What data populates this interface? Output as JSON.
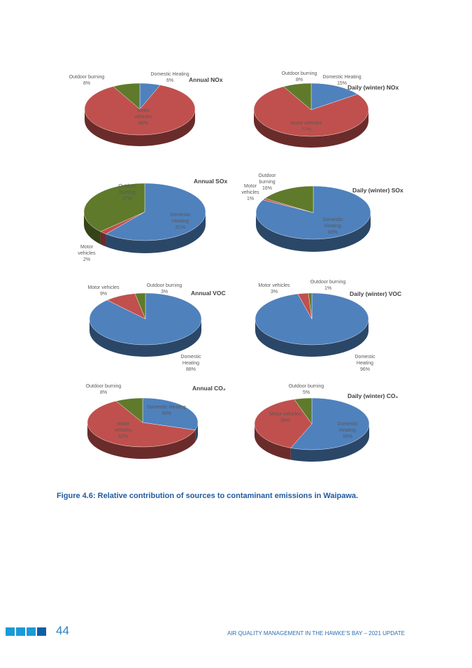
{
  "chart_data": [
    {
      "type": "pie",
      "title": "Annual NOx",
      "categories": [
        "Domestic Heating",
        "Motor vehicles",
        "Outdoor burning"
      ],
      "values": [
        6,
        86,
        8
      ],
      "label_text": [
        "Domestic Heating\n6%",
        "Motor\nvehicles\n86%",
        "Outdoor burning\n8%"
      ]
    },
    {
      "type": "pie",
      "title": "Daily (winter) NOx",
      "categories": [
        "Domestic Heating",
        "Motor vehicles",
        "Outdoor burning"
      ],
      "values": [
        15,
        77,
        8
      ],
      "label_text": [
        "Domestic Heating\n15%",
        "Motor vehicles\n77%",
        "Outdoor burning\n8%"
      ]
    },
    {
      "type": "pie",
      "title": "Annual SOx",
      "categories": [
        "Domestic Heating",
        "Motor vehicles",
        "Outdoor burning"
      ],
      "values": [
        61,
        2,
        37
      ],
      "label_text": [
        "Domestic\nHeating\n61%",
        "Motor\nvehicles\n2%",
        "Outdoor\nburning\n37%"
      ]
    },
    {
      "type": "pie",
      "title": "Daily (winter) SOx",
      "categories": [
        "Domestic Heating",
        "Motor vehicles",
        "Outdoor burning"
      ],
      "values": [
        83,
        1,
        16
      ],
      "label_text": [
        "Domestic\nHeating\n83%",
        "Motor\nvehicles\n1%",
        "Outdoor\nburning\n16%"
      ]
    },
    {
      "type": "pie",
      "title": "Annual VOC",
      "categories": [
        "Domestic Heating",
        "Motor vehicles",
        "Outdoor burning"
      ],
      "values": [
        88,
        9,
        3
      ],
      "label_text": [
        "Domestic\nHeating\n88%",
        "Motor vehicles\n9%",
        "Outdoor burning\n3%"
      ]
    },
    {
      "type": "pie",
      "title": "Daily (winter) VOC",
      "categories": [
        "Domestic Heating",
        "Motor vehicles",
        "Outdoor burning"
      ],
      "values": [
        96,
        3,
        1
      ],
      "label_text": [
        "Domestic\nHeating\n96%",
        "Motor vehicles\n3%",
        "Outdoor burning\n1%"
      ]
    },
    {
      "type": "pie",
      "title": "Annual CO₂",
      "categories": [
        "Domestic Heating",
        "Motor vehicles",
        "Outdoor burning"
      ],
      "values": [
        30,
        62,
        8
      ],
      "label_text": [
        "Domestic Heating\n30%",
        "Motor\nvehicles\n62%",
        "Outdoor burning\n8%"
      ]
    },
    {
      "type": "pie",
      "title": "Daily (winter) CO₂",
      "categories": [
        "Domestic Heating",
        "Motor vehicles",
        "Outdoor burning"
      ],
      "values": [
        56,
        39,
        5
      ],
      "label_text": [
        "Domestic\nHeating\n56%",
        "Motor vehicles\n39%",
        "Outdoor burning\n5%"
      ]
    }
  ],
  "colors": {
    "Domestic Heating": "#4f81bd",
    "Motor vehicles": "#c0504d",
    "Outdoor burning": "#5f7a2b",
    "title": "#404040",
    "label": "#595959"
  },
  "figure": {
    "caption": "Figure 4.6: Relative contribution of sources to contaminant emissions in Waipawa."
  },
  "footer": {
    "page_number": "44",
    "title": "AIR QUALITY MANAGEMENT IN THE HAWKE’S BAY – 2021 UPDATE",
    "square_colors": [
      "#1a9ad6",
      "#1a9ad6",
      "#1a9ad6",
      "#0f5ea8"
    ]
  }
}
